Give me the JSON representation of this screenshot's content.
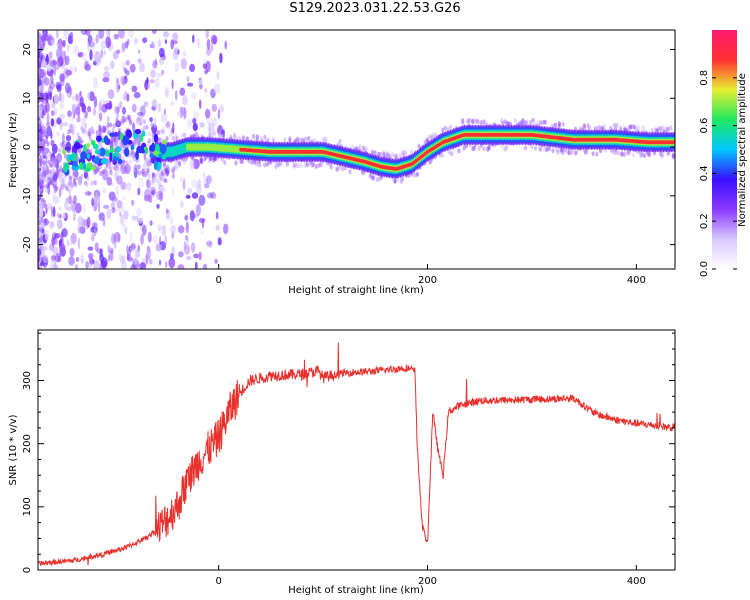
{
  "title": "S129.2023.031.22.53.G26",
  "colors": {
    "snr_line": "#e8302c",
    "ridge_core": "#e02020",
    "colormap": [
      "#ffffff",
      "#d8c8ff",
      "#8a38ff",
      "#3a10ff",
      "#00c8ff",
      "#20e860",
      "#e8f030",
      "#ff3030",
      "#ff1a70"
    ]
  },
  "chart_data": [
    {
      "type": "heatmap",
      "xlabel": "Height of straight line (km)",
      "ylabel": "Frequency (Hz)",
      "xlim": [
        -173,
        437
      ],
      "ylim": [
        -25,
        24
      ],
      "xticks": [
        0,
        200,
        400
      ],
      "yticks": [
        -20,
        -10,
        0,
        10,
        20
      ],
      "colorbar": {
        "label": "Normalized spectral amplitude",
        "range": [
          0,
          1
        ],
        "ticks": [
          "0.0",
          "0.2",
          "0.4",
          "0.6",
          "0.8"
        ]
      },
      "ridge": {
        "x": [
          -150,
          -130,
          -110,
          -95,
          -85,
          -70,
          -60,
          -45,
          -30,
          -10,
          20,
          50,
          80,
          100,
          120,
          140,
          155,
          170,
          185,
          200,
          215,
          235,
          260,
          300,
          340,
          380,
          410,
          437
        ],
        "frequency": [
          -3,
          -2,
          -1,
          0,
          0.5,
          0,
          -1,
          -1,
          0,
          0,
          -0.5,
          -1,
          -1,
          -1,
          -2,
          -3,
          -4,
          -4.5,
          -3.5,
          -1,
          1,
          2.5,
          2.5,
          2.5,
          1.5,
          1.5,
          1,
          1
        ]
      }
    },
    {
      "type": "line",
      "xlabel": "Height of straight line (km)",
      "ylabel": "SNR (10 * v/v)",
      "xlim": [
        -173,
        437
      ],
      "ylim": [
        0,
        380
      ],
      "xticks": [
        0,
        200,
        400
      ],
      "yticks": [
        0,
        100,
        200,
        300
      ],
      "trend": {
        "x": [
          -173,
          -140,
          -110,
          -90,
          -70,
          -55,
          -40,
          -30,
          -20,
          -10,
          0,
          10,
          20,
          30,
          50,
          80,
          95,
          100,
          120,
          150,
          180,
          188,
          190,
          195,
          200,
          205,
          210,
          215,
          220,
          225,
          230,
          250,
          300,
          340,
          360,
          380,
          400,
          437
        ],
        "snr": [
          10,
          15,
          25,
          35,
          50,
          70,
          100,
          140,
          170,
          190,
          210,
          250,
          280,
          300,
          308,
          310,
          315,
          305,
          312,
          315,
          320,
          315,
          200,
          70,
          40,
          250,
          190,
          150,
          250,
          255,
          260,
          268,
          270,
          272,
          248,
          238,
          232,
          225
        ]
      }
    }
  ]
}
